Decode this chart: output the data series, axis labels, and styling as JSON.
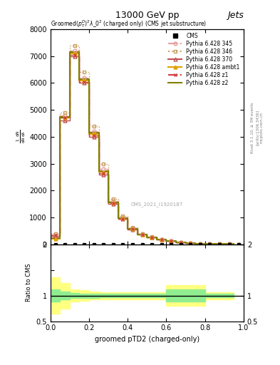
{
  "title_top": "13000 GeV pp",
  "title_right": "Jets",
  "xlabel": "groomed pTD2 (charged-only)",
  "watermark": "CMS_2021_I1920187",
  "rivet_text": "Rivet 3.1.10, ≥ 3M events",
  "arxiv_text": "[arXiv:1306.3436]",
  "mcplots_text": "mcplots.cern.ch",
  "x_bins": [
    0.0,
    0.05,
    0.1,
    0.15,
    0.2,
    0.25,
    0.3,
    0.35,
    0.4,
    0.45,
    0.5,
    0.55,
    0.6,
    0.65,
    0.7,
    0.75,
    0.8,
    0.85,
    0.9,
    0.95,
    1.0
  ],
  "cms_x": [
    0.025,
    0.075,
    0.125,
    0.175,
    0.225,
    0.275,
    0.325,
    0.375,
    0.425,
    0.475,
    0.525,
    0.575,
    0.625,
    0.675,
    0.725,
    0.775,
    0.825,
    0.875,
    0.925,
    0.975
  ],
  "series": {
    "Pythia 6.428 345": {
      "color": "#e8a0a0",
      "linestyle": "-.",
      "marker": "o",
      "markerfacecolor": "none",
      "linewidth": 1.0,
      "values": [
        400,
        4800,
        7200,
        6200,
        4200,
        2800,
        1600,
        1000,
        600,
        380,
        270,
        180,
        120,
        80,
        50,
        30,
        20,
        15,
        10,
        5
      ]
    },
    "Pythia 6.428 346": {
      "color": "#c8a060",
      "linestyle": ":",
      "marker": "s",
      "markerfacecolor": "none",
      "linewidth": 1.0,
      "values": [
        380,
        4900,
        7400,
        6400,
        4400,
        3000,
        1700,
        1050,
        620,
        390,
        275,
        185,
        125,
        82,
        52,
        32,
        21,
        16,
        11,
        5
      ]
    },
    "Pythia 6.428 370": {
      "color": "#c05050",
      "linestyle": "-",
      "marker": "^",
      "markerfacecolor": "none",
      "linewidth": 1.0,
      "values": [
        300,
        4600,
        7000,
        6000,
        4000,
        2600,
        1500,
        950,
        560,
        360,
        255,
        170,
        115,
        75,
        47,
        28,
        18,
        13,
        9,
        4
      ]
    },
    "Pythia 6.428 ambt1": {
      "color": "#e0a000",
      "linestyle": "-",
      "marker": "^",
      "markerfacecolor": "#e0a000",
      "linewidth": 1.5,
      "values": [
        200,
        4700,
        7100,
        6100,
        4100,
        2700,
        1550,
        970,
        570,
        365,
        258,
        172,
        116,
        76,
        48,
        29,
        19,
        14,
        9.5,
        4.5
      ]
    },
    "Pythia 6.428 z1": {
      "color": "#d04040",
      "linestyle": "-.",
      "marker": "x",
      "markerfacecolor": "#d04040",
      "linewidth": 1.0,
      "values": [
        350,
        4700,
        7050,
        6050,
        4050,
        2650,
        1520,
        960,
        565,
        362,
        256,
        171,
        115,
        75,
        47.5,
        28.5,
        18.5,
        13.5,
        9.2,
        4.2
      ]
    },
    "Pythia 6.428 z2": {
      "color": "#808000",
      "linestyle": "-",
      "marker": null,
      "markerfacecolor": "none",
      "linewidth": 1.5,
      "values": [
        220,
        4750,
        7150,
        6150,
        4150,
        2720,
        1560,
        975,
        572,
        367,
        259,
        173,
        117,
        77,
        48.5,
        29.5,
        19.5,
        14.5,
        9.8,
        4.8
      ]
    }
  },
  "ratio_green_band": {
    "x": [
      0.0,
      0.05,
      0.1,
      0.15,
      0.2,
      0.25,
      0.3,
      0.35,
      0.4,
      0.45,
      0.5,
      0.55,
      0.6,
      0.65,
      0.7,
      0.75,
      0.8,
      0.85,
      0.9,
      0.95
    ],
    "y_low": [
      0.88,
      0.92,
      0.95,
      0.96,
      0.96,
      0.97,
      0.97,
      0.97,
      0.97,
      0.97,
      0.97,
      0.97,
      0.88,
      0.88,
      0.88,
      0.88,
      0.97,
      0.97,
      0.97,
      0.97
    ],
    "y_high": [
      1.12,
      1.08,
      1.05,
      1.04,
      1.04,
      1.03,
      1.03,
      1.03,
      1.03,
      1.03,
      1.03,
      1.03,
      1.12,
      1.12,
      1.12,
      1.12,
      1.03,
      1.03,
      1.03,
      1.03
    ]
  },
  "ratio_yellow_band": {
    "x": [
      0.0,
      0.05,
      0.1,
      0.15,
      0.2,
      0.25,
      0.3,
      0.35,
      0.4,
      0.45,
      0.5,
      0.55,
      0.6,
      0.65,
      0.7,
      0.75,
      0.8,
      0.85,
      0.9,
      0.95
    ],
    "y_low": [
      0.65,
      0.75,
      0.88,
      0.9,
      0.92,
      0.93,
      0.93,
      0.93,
      0.93,
      0.93,
      0.93,
      0.93,
      0.8,
      0.8,
      0.8,
      0.8,
      0.93,
      0.93,
      0.93,
      0.93
    ],
    "y_high": [
      1.35,
      1.25,
      1.12,
      1.1,
      1.08,
      1.07,
      1.07,
      1.07,
      1.07,
      1.07,
      1.07,
      1.07,
      1.2,
      1.2,
      1.2,
      1.2,
      1.07,
      1.07,
      1.07,
      1.07
    ]
  },
  "ylim_main": [
    0,
    8000
  ],
  "ylim_ratio": [
    0.5,
    2.0
  ],
  "xlim": [
    0,
    1.0
  ],
  "background_color": "#ffffff",
  "green_color": "#90ee90",
  "yellow_color": "#ffff80"
}
